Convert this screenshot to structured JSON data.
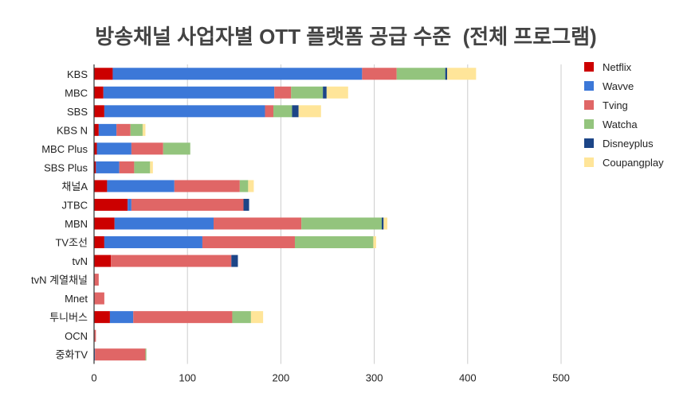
{
  "chart_data": {
    "type": "bar",
    "orientation": "horizontal",
    "stacked": true,
    "title": "방송채널 사업자별 OTT 플랫폼 공급 수준  (전체 프로그램)",
    "xlabel": "",
    "ylabel": "",
    "xlim": [
      0,
      500
    ],
    "xticks": [
      0,
      100,
      200,
      300,
      400,
      500
    ],
    "grid": true,
    "legend": "right",
    "categories": [
      "KBS",
      "MBC",
      "SBS",
      "KBS N",
      "MBC Plus",
      "SBS Plus",
      "채널A",
      "JTBC",
      "MBN",
      "TV조선",
      "tvN",
      "tvN 계열채널",
      "Mnet",
      "투니버스",
      "OCN",
      "중화TV"
    ],
    "series": [
      {
        "name": "Netflix",
        "color": "#cc0000",
        "values": [
          20,
          10,
          11,
          5,
          3,
          2,
          14,
          36,
          22,
          11,
          18,
          0,
          0,
          17,
          0,
          0
        ]
      },
      {
        "name": "Wavve",
        "color": "#3c78d8",
        "values": [
          267,
          183,
          172,
          19,
          37,
          25,
          72,
          4,
          106,
          105,
          0,
          0,
          0,
          25,
          0,
          1
        ]
      },
      {
        "name": "Tving",
        "color": "#e06666",
        "values": [
          37,
          18,
          9,
          15,
          34,
          16,
          70,
          120,
          94,
          99,
          129,
          5,
          11,
          106,
          2,
          54
        ]
      },
      {
        "name": "Watcha",
        "color": "#93c47d",
        "values": [
          52,
          34,
          20,
          13,
          29,
          17,
          9,
          0,
          86,
          84,
          0,
          0,
          0,
          20,
          0,
          1
        ]
      },
      {
        "name": "Disneyplus",
        "color": "#1c4587",
        "values": [
          2,
          4,
          7,
          0,
          0,
          0,
          0,
          6,
          2,
          0,
          7,
          0,
          0,
          0,
          0,
          0
        ]
      },
      {
        "name": "Coupangplay",
        "color": "#ffe599",
        "values": [
          31,
          23,
          24,
          3,
          0,
          3,
          6,
          0,
          4,
          3,
          0,
          0,
          0,
          13,
          0,
          0
        ]
      }
    ]
  }
}
